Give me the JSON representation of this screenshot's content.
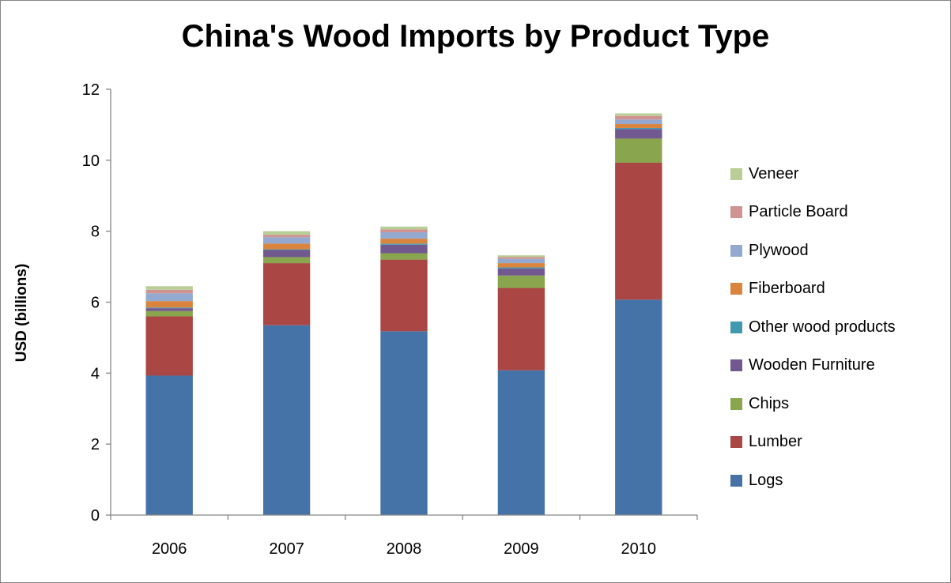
{
  "chart_data": {
    "type": "bar",
    "stacked": true,
    "title": "China's Wood Imports by Product Type",
    "xlabel": "",
    "ylabel": "USD (billions)",
    "ylim": [
      0,
      12
    ],
    "yticks": [
      "0",
      "2",
      "4",
      "6",
      "8",
      "10",
      "12"
    ],
    "categories": [
      "2006",
      "2007",
      "2008",
      "2009",
      "2010"
    ],
    "legend_position": "right",
    "grid": false,
    "series": [
      {
        "name": "Logs",
        "color": "#4572A7",
        "values": [
          3.93,
          5.35,
          5.18,
          4.08,
          6.07
        ]
      },
      {
        "name": "Lumber",
        "color": "#AA4643",
        "values": [
          1.67,
          1.75,
          2.02,
          2.32,
          3.86
        ]
      },
      {
        "name": "Chips",
        "color": "#89A54E",
        "values": [
          0.15,
          0.17,
          0.18,
          0.35,
          0.68
        ]
      },
      {
        "name": "Wooden Furniture",
        "color": "#71588F",
        "values": [
          0.08,
          0.2,
          0.24,
          0.2,
          0.27
        ]
      },
      {
        "name": "Other wood products",
        "color": "#4198AF",
        "values": [
          0.02,
          0.02,
          0.03,
          0.03,
          0.03
        ]
      },
      {
        "name": "Fiberboard",
        "color": "#DB843D",
        "values": [
          0.18,
          0.16,
          0.14,
          0.12,
          0.11
        ]
      },
      {
        "name": "Plywood",
        "color": "#93A9CF",
        "values": [
          0.22,
          0.18,
          0.18,
          0.12,
          0.13
        ]
      },
      {
        "name": "Particle Board",
        "color": "#D19392",
        "values": [
          0.1,
          0.07,
          0.08,
          0.05,
          0.1
        ]
      },
      {
        "name": "Veneer",
        "color": "#B9CD96",
        "values": [
          0.1,
          0.1,
          0.08,
          0.05,
          0.07
        ]
      }
    ]
  }
}
